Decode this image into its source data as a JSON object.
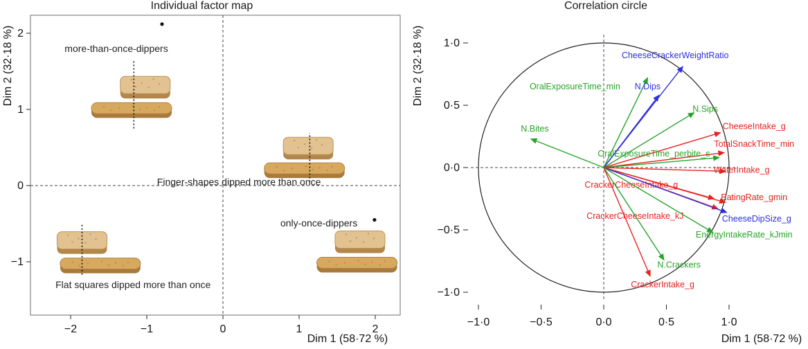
{
  "chart_data": [
    {
      "type": "scatter",
      "subtype": "pca-individual-factor-map",
      "title": "Individual factor map",
      "xlabel": "Dim 1 (58·72 %)",
      "ylabel": "Dim 2 (32·18 %)",
      "xlim": [
        -2.5,
        2.35
      ],
      "ylim": [
        -1.7,
        2.25
      ],
      "xticks": [
        -2,
        -1,
        0,
        1,
        2
      ],
      "yticks": [
        -1,
        0,
        1,
        2
      ],
      "xtick_labels": [
        "−2",
        "−1",
        "0",
        "1",
        "2"
      ],
      "ytick_labels": [
        "−1",
        "0",
        "1",
        "2"
      ],
      "zero_lines": true,
      "points": [
        {
          "label": "more-than-once-dippers",
          "x": -0.8,
          "y": 2.12,
          "label_x": -1.4,
          "label_y": 1.8
        },
        {
          "label": "only-once-dippers",
          "x": 1.99,
          "y": -0.45,
          "label_x": 1.26,
          "label_y": -0.49
        }
      ],
      "text_labels": [
        {
          "label": "Finger-shapes dipped more than once",
          "x": 0.21,
          "y": 0.05
        },
        {
          "label": "Flat squares dipped more than once",
          "x": -1.18,
          "y": -1.3
        }
      ],
      "cracker_groups": [
        {
          "square": {
            "x": -1.02,
            "y": 1.28
          },
          "finger": {
            "x": -1.2,
            "y": 0.98
          },
          "line": {
            "x": -1.17,
            "y1": 0.75,
            "y2": 1.64
          }
        },
        {
          "square": {
            "x": 1.12,
            "y": 0.48
          },
          "finger": {
            "x": 1.07,
            "y": 0.19
          },
          "line": {
            "x": 1.14,
            "y1": 0.05,
            "y2": 0.69
          }
        },
        {
          "square": {
            "x": -1.85,
            "y": -0.76
          },
          "finger": {
            "x": -1.61,
            "y": -1.06
          },
          "line": {
            "x": -1.85,
            "y1": -1.17,
            "y2": -0.49
          }
        },
        {
          "square": {
            "x": 1.8,
            "y": -0.75
          },
          "finger": {
            "x": 1.76,
            "y": -1.05
          },
          "line": null
        }
      ]
    },
    {
      "type": "scatter",
      "subtype": "pca-correlation-circle",
      "title": "Correlation circle",
      "xlabel": "Dim 1 (58·72 %)",
      "ylabel": "Dim 2 (32·18 %)",
      "xlim": [
        -1.07,
        1.07
      ],
      "ylim": [
        -1.07,
        1.07
      ],
      "xticks": [
        -1.0,
        -0.5,
        0.0,
        0.5,
        1.0
      ],
      "yticks": [
        -1.0,
        -0.5,
        0.0,
        0.5,
        1.0
      ],
      "xtick_labels": [
        "−1·0",
        "−0·5",
        "0·0",
        "0·5",
        "1·0"
      ],
      "ytick_labels": [
        "−1·0",
        "−0·5",
        "0·0",
        "0·5",
        "1·0"
      ],
      "circle_radius": 1.0,
      "zero_lines": true,
      "colors": {
        "red": "#e8211d",
        "green": "#27a327",
        "blue": "#2e2ee0"
      },
      "variables": [
        {
          "name": "CheeseCrackerWeightRatio",
          "color": "blue",
          "x": 0.63,
          "y": 0.81,
          "label_x": 0.57,
          "label_y": 0.9
        },
        {
          "name": "OralExposureTime_min",
          "color": "green",
          "x": 0.35,
          "y": 0.72,
          "label_x": -0.23,
          "label_y": 0.65
        },
        {
          "name": "N.Dips",
          "color": "blue",
          "x": 0.44,
          "y": 0.58,
          "label_x": 0.35,
          "label_y": 0.65
        },
        {
          "name": "N.Sips",
          "color": "green",
          "x": 0.72,
          "y": 0.44,
          "label_x": 0.81,
          "label_y": 0.47
        },
        {
          "name": "N.Bites",
          "color": "green",
          "x": -0.58,
          "y": 0.23,
          "label_x": -0.55,
          "label_y": 0.31
        },
        {
          "name": "CheeseIntake_g",
          "color": "red",
          "x": 0.93,
          "y": 0.28,
          "label_x": 1.2,
          "label_y": 0.33
        },
        {
          "name": "TotalSnackTime_min",
          "color": "red",
          "x": 0.96,
          "y": 0.12,
          "label_x": 1.2,
          "label_y": 0.19
        },
        {
          "name": "OralExposureTime_perbite_s",
          "color": "green",
          "x": 0.92,
          "y": 0.08,
          "label_x": 0.4,
          "label_y": 0.11
        },
        {
          "name": "WaterIntake_g",
          "color": "red",
          "x": 0.97,
          "y": -0.03,
          "label_x": 1.1,
          "label_y": -0.02
        },
        {
          "name": "CrackerCheeseIntake_g",
          "color": "red",
          "x": 0.88,
          "y": -0.25,
          "label_x": 0.22,
          "label_y": -0.14
        },
        {
          "name": "EatingRate_gmin",
          "color": "red",
          "x": 0.97,
          "y": -0.28,
          "label_x": 1.2,
          "label_y": -0.24
        },
        {
          "name": "CrackerCheeseIntake_kJ",
          "color": "red",
          "x": 0.91,
          "y": -0.33,
          "label_x": 0.25,
          "label_y": -0.39
        },
        {
          "name": "CheeseDipSize_g",
          "color": "blue",
          "x": 0.98,
          "y": -0.36,
          "label_x": 1.22,
          "label_y": -0.41
        },
        {
          "name": "EnergyIntakeRate_kJmin",
          "color": "green",
          "x": 0.87,
          "y": -0.52,
          "label_x": 1.12,
          "label_y": -0.54
        },
        {
          "name": "N.Crackers",
          "color": "green",
          "x": 0.48,
          "y": -0.74,
          "label_x": 0.6,
          "label_y": -0.78
        },
        {
          "name": "CrackerIntake_g",
          "color": "red",
          "x": 0.37,
          "y": -0.87,
          "label_x": 0.47,
          "label_y": -0.94
        }
      ]
    }
  ]
}
